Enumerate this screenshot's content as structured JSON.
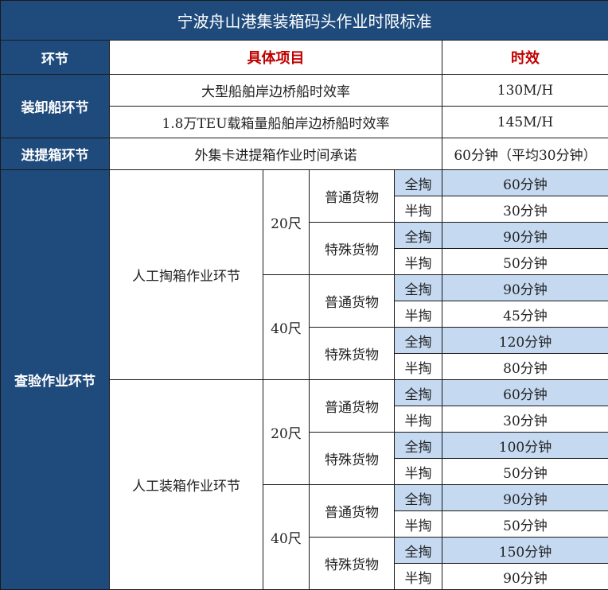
{
  "title": "宁波舟山港集装箱码头作业时限标准",
  "header": {
    "stage": "环节",
    "item": "具体项目",
    "time": "时效"
  },
  "colors": {
    "header_bg": "#1e4a7c",
    "header_text": "#c00000",
    "highlight": "#c5d9f1"
  },
  "ship": {
    "stage": "装卸船环节",
    "rows": [
      {
        "item": "大型船舶岸边桥船时效率",
        "time": "130M/H"
      },
      {
        "item": "1.8万TEU载箱量船舶岸边桥船时效率",
        "time": "145M/H"
      }
    ]
  },
  "gate": {
    "stage": "进提箱环节",
    "item": "外集卡进提箱作业时间承诺",
    "time": "60分钟（平均30分钟）"
  },
  "inspection": {
    "stage": "查验作业环节",
    "groups": [
      {
        "name": "人工掏箱作业环节",
        "sizes": [
          {
            "size": "20尺",
            "cargo": [
              {
                "type": "普通货物",
                "rows": [
                  {
                    "mode": "全掏",
                    "time": "60分钟"
                  },
                  {
                    "mode": "半掏",
                    "time": "30分钟"
                  }
                ]
              },
              {
                "type": "特殊货物",
                "rows": [
                  {
                    "mode": "全掏",
                    "time": "90分钟"
                  },
                  {
                    "mode": "半掏",
                    "time": "50分钟"
                  }
                ]
              }
            ]
          },
          {
            "size": "40尺",
            "cargo": [
              {
                "type": "普通货物",
                "rows": [
                  {
                    "mode": "全掏",
                    "time": "90分钟"
                  },
                  {
                    "mode": "半掏",
                    "time": "45分钟"
                  }
                ]
              },
              {
                "type": "特殊货物",
                "rows": [
                  {
                    "mode": "全掏",
                    "time": "120分钟"
                  },
                  {
                    "mode": "半掏",
                    "time": "80分钟"
                  }
                ]
              }
            ]
          }
        ]
      },
      {
        "name": "人工装箱作业环节",
        "sizes": [
          {
            "size": "20尺",
            "cargo": [
              {
                "type": "普通货物",
                "rows": [
                  {
                    "mode": "全掏",
                    "time": "60分钟"
                  },
                  {
                    "mode": "半掏",
                    "time": "30分钟"
                  }
                ]
              },
              {
                "type": "特殊货物",
                "rows": [
                  {
                    "mode": "全掏",
                    "time": "100分钟"
                  },
                  {
                    "mode": "半掏",
                    "time": "50分钟"
                  }
                ]
              }
            ]
          },
          {
            "size": "40尺",
            "cargo": [
              {
                "type": "普通货物",
                "rows": [
                  {
                    "mode": "全掏",
                    "time": "90分钟"
                  },
                  {
                    "mode": "半掏",
                    "time": "50分钟"
                  }
                ]
              },
              {
                "type": "特殊货物",
                "rows": [
                  {
                    "mode": "全掏",
                    "time": "150分钟"
                  },
                  {
                    "mode": "半掏",
                    "time": "90分钟"
                  }
                ]
              }
            ]
          }
        ]
      }
    ]
  }
}
